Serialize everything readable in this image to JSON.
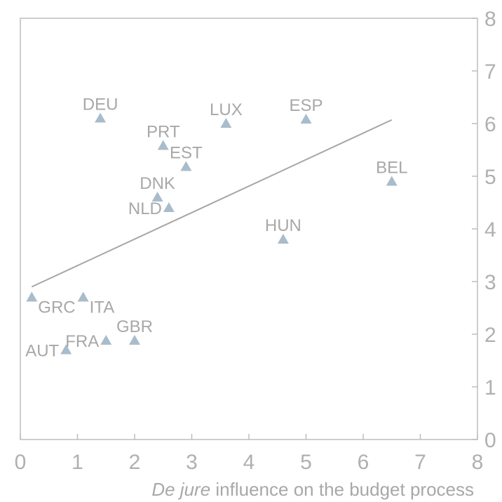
{
  "chart_data": {
    "type": "scatter",
    "title": "",
    "xlabel_italic": "De jure",
    "xlabel_rest": " influence on the budget process",
    "ylabel": "",
    "xlim": [
      0,
      8
    ],
    "ylim": [
      0,
      8
    ],
    "x_ticks": [
      0,
      1,
      2,
      3,
      4,
      5,
      6,
      7,
      8
    ],
    "y_ticks": [
      0,
      1,
      2,
      3,
      4,
      5,
      6,
      7,
      8
    ],
    "y_axis_side": "right",
    "grid": false,
    "legend": "none",
    "marker_color": "#a9bccb",
    "line_color": "#a6a6a6",
    "trendline": {
      "x": [
        0.2,
        6.5
      ],
      "y": [
        2.9,
        6.07
      ]
    },
    "points": [
      {
        "label": "DEU",
        "x": 1.4,
        "y": 6.1,
        "label_pos": "above"
      },
      {
        "label": "LUX",
        "x": 3.6,
        "y": 6.0,
        "label_pos": "above"
      },
      {
        "label": "ESP",
        "x": 5.0,
        "y": 6.08,
        "label_pos": "above"
      },
      {
        "label": "PRT",
        "x": 2.5,
        "y": 5.58,
        "label_pos": "above"
      },
      {
        "label": "EST",
        "x": 2.9,
        "y": 5.18,
        "label_pos": "above"
      },
      {
        "label": "BEL",
        "x": 6.5,
        "y": 4.9,
        "label_pos": "above"
      },
      {
        "label": "DNK",
        "x": 2.4,
        "y": 4.6,
        "label_pos": "above"
      },
      {
        "label": "NLD",
        "x": 2.6,
        "y": 4.4,
        "label_pos": "left"
      },
      {
        "label": "HUN",
        "x": 4.6,
        "y": 3.8,
        "label_pos": "above"
      },
      {
        "label": "GRC",
        "x": 0.2,
        "y": 2.7,
        "label_pos": "below-right"
      },
      {
        "label": "ITA",
        "x": 1.1,
        "y": 2.7,
        "label_pos": "below-right"
      },
      {
        "label": "GBR",
        "x": 2.0,
        "y": 1.88,
        "label_pos": "above"
      },
      {
        "label": "FRA",
        "x": 1.5,
        "y": 1.88,
        "label_pos": "left"
      },
      {
        "label": "AUT",
        "x": 0.8,
        "y": 1.7,
        "label_pos": "left"
      }
    ]
  }
}
